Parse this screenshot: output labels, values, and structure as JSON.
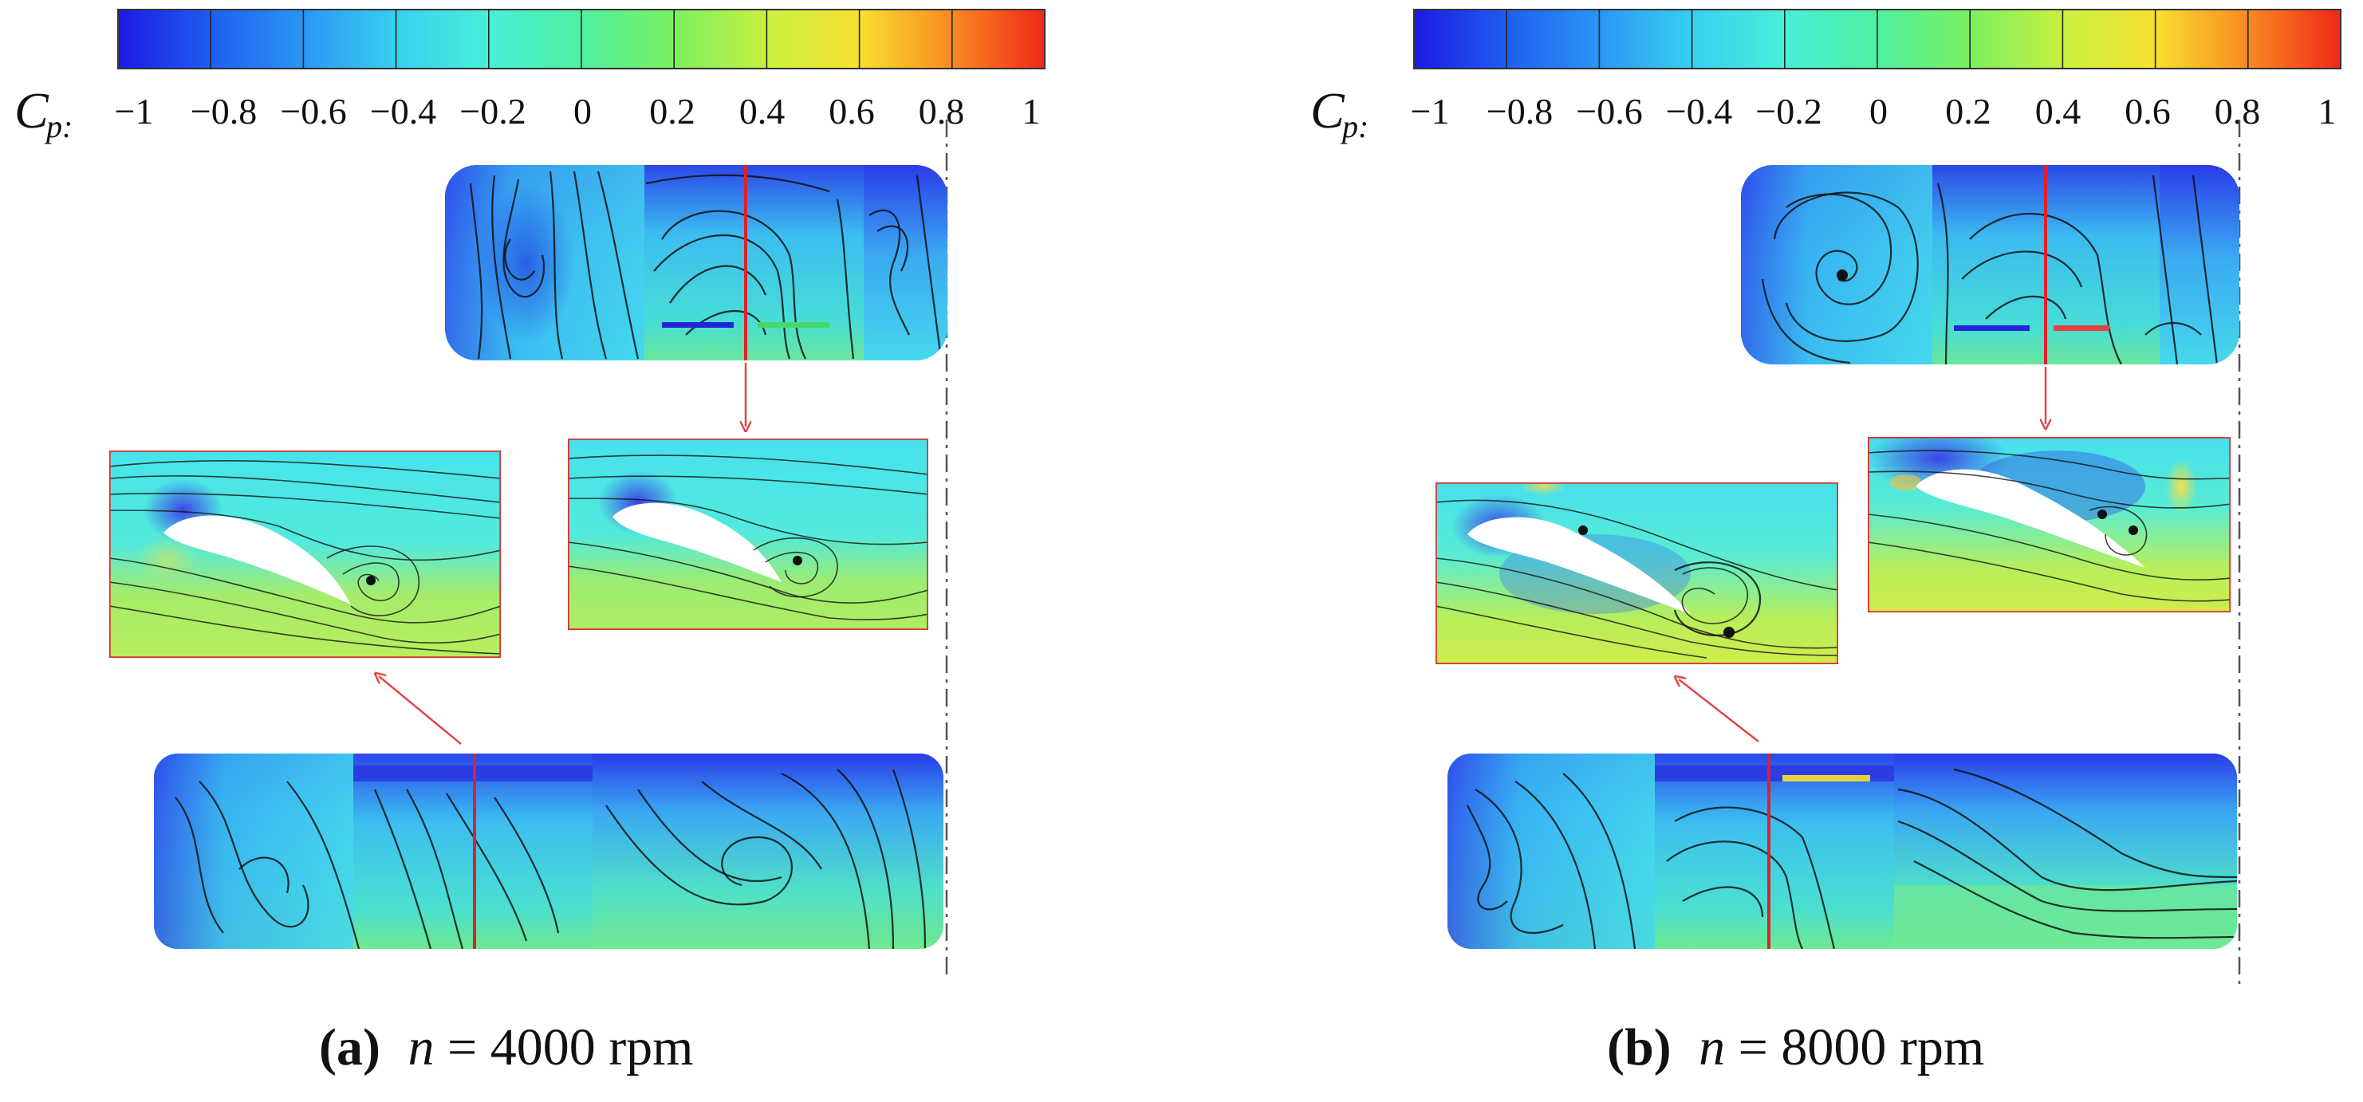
{
  "colorbar": {
    "label": "C",
    "label_sub": "p:",
    "ticks": [
      "−1",
      "−0.8",
      "−0.6",
      "−0.4",
      "−0.2",
      "0",
      "0.2",
      "0.4",
      "0.6",
      "0.8",
      "1"
    ],
    "colors": [
      "#1a1ae6",
      "#1f5ef0",
      "#2a96f2",
      "#38d0f0",
      "#46f0d8",
      "#50f0a0",
      "#7af060",
      "#c8f040",
      "#f8e030",
      "#f88a20",
      "#f02818"
    ]
  },
  "panels": [
    {
      "caption_letter": "(a)",
      "caption_var": "n",
      "caption_value": " = 4000 rpm"
    },
    {
      "caption_letter": "(b)",
      "caption_var": "n",
      "caption_value": " = 8000 rpm"
    }
  ]
}
